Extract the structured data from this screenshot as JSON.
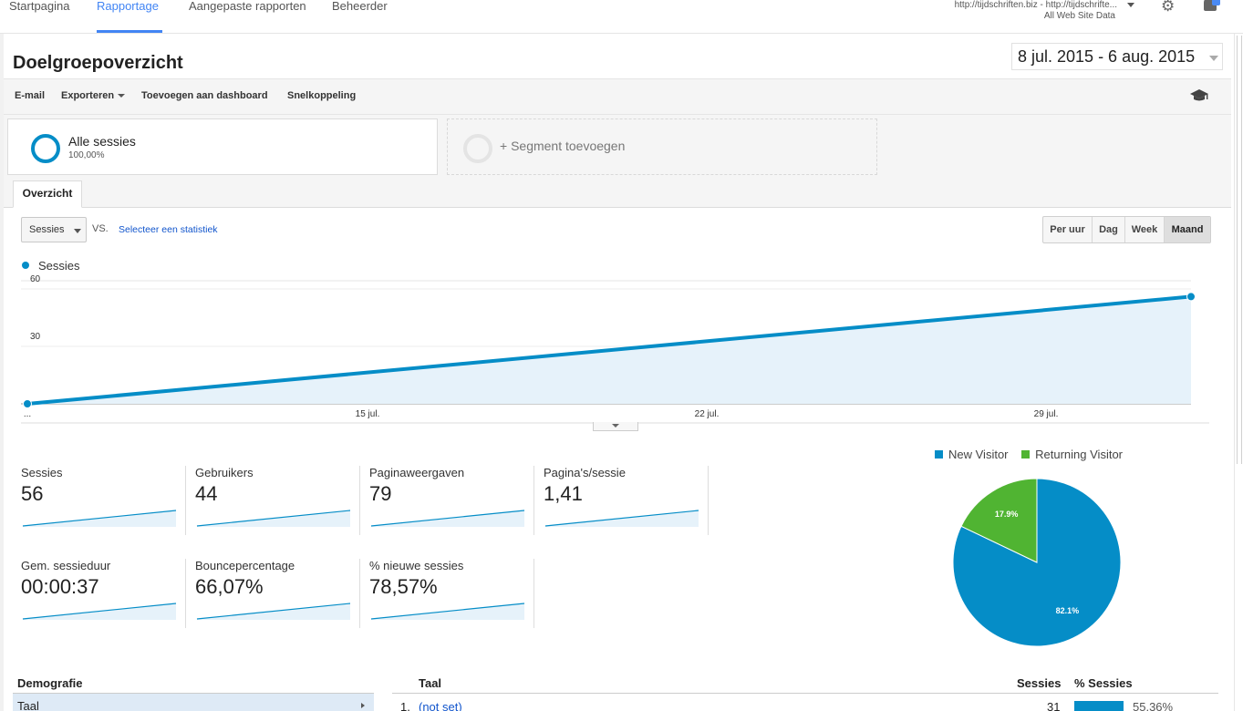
{
  "topnav": {
    "tabs": [
      "Startpagina",
      "Rapportage",
      "Aangepaste rapporten",
      "Beheerder"
    ],
    "active_tab": "Rapportage",
    "account_line1": "http://tijdschriften.biz - http://tijdschrifte...",
    "account_line2": "All Web Site Data"
  },
  "header": {
    "title": "Doelgroepoverzicht",
    "date_range": "8 jul. 2015 - 6 aug. 2015"
  },
  "toolbar": {
    "email": "E-mail",
    "export": "Exporteren",
    "add_dashboard": "Toevoegen aan dashboard",
    "shortcut": "Snelkoppeling"
  },
  "segments": {
    "active_name": "Alle sessies",
    "active_pct": "100,00%",
    "add_label": "+ Segment toevoegen"
  },
  "tabs": {
    "overview": "Overzicht"
  },
  "chart_controls": {
    "metric": "Sessies",
    "vs": "VS.",
    "select_stat": "Selecteer een statistiek",
    "periods": [
      "Per uur",
      "Dag",
      "Week",
      "Maand"
    ],
    "active_period": "Maand"
  },
  "chart_data": [
    {
      "type": "area",
      "series": [
        {
          "name": "Sessies",
          "x": [
            "8 jul. 2015",
            "6 aug. 2015"
          ],
          "values": [
            0,
            56
          ]
        }
      ],
      "xticks": [
        "...",
        "15 jul.",
        "22 jul.",
        "29 jul."
      ],
      "yticks": [
        "30",
        "60"
      ],
      "ylim": [
        0,
        60
      ],
      "grid": true,
      "color": "#058dc7"
    },
    {
      "type": "pie",
      "labels": [
        "New Visitor",
        "Returning Visitor"
      ],
      "values": [
        82.1,
        17.9
      ],
      "slice_labels": [
        "82.1%",
        "17.9%"
      ],
      "colors": [
        "#058dc7",
        "#50b432"
      ],
      "legend": "top"
    }
  ],
  "kpis": [
    {
      "label": "Sessies",
      "value": "56"
    },
    {
      "label": "Gebruikers",
      "value": "44"
    },
    {
      "label": "Paginaweergaven",
      "value": "79"
    },
    {
      "label": "Pagina's/sessie",
      "value": "1,41"
    },
    {
      "label": "Gem. sessieduur",
      "value": "00:00:37"
    },
    {
      "label": "Bouncepercentage",
      "value": "66,07%"
    },
    {
      "label": "% nieuwe sessies",
      "value": "78,57%"
    }
  ],
  "bottom": {
    "demo_heading": "Demografie",
    "demo_row": "Taal",
    "table_heading": "Taal",
    "col_sessions": "Sessies",
    "col_pct_sessions": "% Sessies",
    "row1": {
      "index": "1.",
      "name": "(not set)",
      "sessions": "31",
      "pct": "55,36%"
    }
  }
}
